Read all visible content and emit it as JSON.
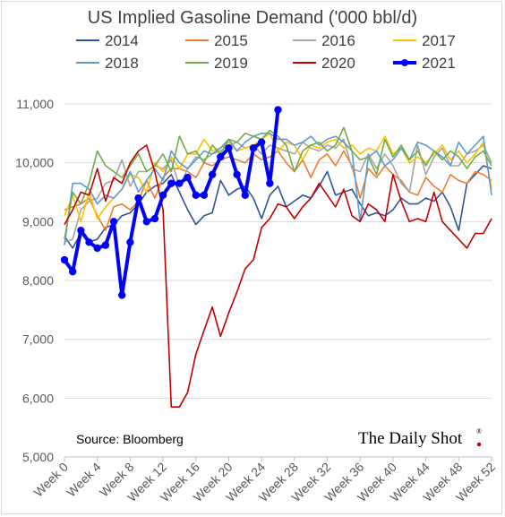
{
  "chart_data": {
    "type": "line",
    "title": "US Implied Gasoline Demand ('000 bbl/d)",
    "source": "Source: Bloomberg",
    "brand": "The Daily Shot",
    "brand_mark": "®",
    "xlabel": "",
    "ylabel": "",
    "xlim": [
      0,
      52
    ],
    "ylim": [
      5000,
      11000
    ],
    "y_ticks": [
      5000,
      6000,
      7000,
      8000,
      9000,
      10000,
      11000
    ],
    "y_tick_labels": [
      "5,000",
      "6,000",
      "7,000",
      "8,000",
      "9,000",
      "10,000",
      "11,000"
    ],
    "x_ticks": [
      0,
      4,
      8,
      12,
      16,
      20,
      24,
      28,
      32,
      36,
      40,
      44,
      48,
      52
    ],
    "x_tick_labels": [
      "Week 0",
      "Week 4",
      "Week 8",
      "Week 12",
      "Week 16",
      "Week 20",
      "Week 24",
      "Week 28",
      "Week 32",
      "Week 36",
      "Week 40",
      "Week 44",
      "Week 48",
      "Week 52"
    ],
    "grid": "horizontal",
    "legend_position": "top",
    "series": [
      {
        "name": "2014",
        "color": "#2e5597",
        "x": [
          0,
          1,
          2,
          3,
          4,
          5,
          6,
          7,
          8,
          9,
          10,
          11,
          12,
          13,
          14,
          15,
          16,
          17,
          18,
          19,
          20,
          21,
          22,
          23,
          24,
          25,
          26,
          27,
          28,
          29,
          30,
          31,
          32,
          33,
          34,
          35,
          36,
          37,
          38,
          39,
          40,
          41,
          42,
          43,
          44,
          45,
          46,
          47,
          48,
          49,
          50,
          51,
          52
        ],
        "y": [
          8750,
          8550,
          8800,
          8650,
          8700,
          8900,
          8950,
          9100,
          9150,
          9300,
          9500,
          9600,
          9650,
          9800,
          9500,
          9200,
          8950,
          9100,
          9150,
          9700,
          9450,
          9550,
          9600,
          9400,
          9050,
          9450,
          9600,
          9250,
          9350,
          9450,
          9400,
          9600,
          9850,
          9450,
          9500,
          9550,
          9300,
          9100,
          9150,
          9100,
          9200,
          9400,
          9300,
          9300,
          9400,
          9350,
          9500,
          9250,
          8850,
          9650,
          9800,
          9950,
          9900
        ]
      },
      {
        "name": "2015",
        "color": "#ed7d31",
        "x": [
          0,
          1,
          2,
          3,
          4,
          5,
          6,
          7,
          8,
          9,
          10,
          11,
          12,
          13,
          14,
          15,
          16,
          17,
          18,
          19,
          20,
          21,
          22,
          23,
          24,
          25,
          26,
          27,
          28,
          29,
          30,
          31,
          32,
          33,
          34,
          35,
          36,
          37,
          38,
          39,
          40,
          41,
          42,
          43,
          44,
          45,
          46,
          47,
          48,
          49,
          50,
          51,
          52
        ],
        "y": [
          9200,
          9250,
          9300,
          9400,
          9100,
          8850,
          9250,
          9300,
          9200,
          9350,
          9700,
          9400,
          9750,
          9900,
          9900,
          9850,
          9750,
          10000,
          9950,
          10050,
          10100,
          10050,
          10000,
          10150,
          10050,
          10100,
          10200,
          10000,
          9850,
          10050,
          9750,
          10050,
          10150,
          9950,
          10200,
          9950,
          9400,
          9900,
          9750,
          9950,
          9800,
          9700,
          9500,
          9450,
          9750,
          9600,
          9500,
          9800,
          9700,
          9650,
          9850,
          9800,
          9700
        ]
      },
      {
        "name": "2016",
        "color": "#a5a5a5",
        "x": [
          0,
          1,
          2,
          3,
          4,
          5,
          6,
          7,
          8,
          9,
          10,
          11,
          12,
          13,
          14,
          15,
          16,
          17,
          18,
          19,
          20,
          21,
          22,
          23,
          24,
          25,
          26,
          27,
          28,
          29,
          30,
          31,
          32,
          33,
          34,
          35,
          36,
          37,
          38,
          39,
          40,
          41,
          42,
          43,
          44,
          45,
          46,
          47,
          48,
          49,
          50,
          51,
          52
        ],
        "y": [
          8650,
          8700,
          9200,
          9350,
          9400,
          9650,
          9700,
          10050,
          9600,
          9850,
          9850,
          9950,
          9900,
          10050,
          9600,
          9900,
          10100,
          10050,
          10150,
          10200,
          10300,
          10350,
          10250,
          10300,
          10150,
          10300,
          10250,
          10200,
          10150,
          10350,
          10250,
          10200,
          10300,
          10250,
          10400,
          9900,
          9850,
          10150,
          9900,
          10150,
          9950,
          9650,
          9500,
          10300,
          9800,
          10100,
          10250,
          9950,
          9950,
          10150,
          10200,
          10300,
          10000
        ]
      },
      {
        "name": "2017",
        "color": "#ffc000",
        "x": [
          0,
          1,
          2,
          3,
          4,
          5,
          6,
          7,
          8,
          9,
          10,
          11,
          12,
          13,
          14,
          15,
          16,
          17,
          18,
          19,
          20,
          21,
          22,
          23,
          24,
          25,
          26,
          27,
          28,
          29,
          30,
          31,
          32,
          33,
          34,
          35,
          36,
          37,
          38,
          39,
          40,
          41,
          42,
          43,
          44,
          45,
          46,
          47,
          48,
          49,
          50,
          51,
          52
        ],
        "y": [
          9100,
          9450,
          9000,
          9500,
          9050,
          9250,
          9400,
          9550,
          9800,
          9750,
          9500,
          10000,
          9850,
          10100,
          9900,
          10150,
          10150,
          10400,
          10200,
          10250,
          10350,
          10200,
          10250,
          10300,
          10400,
          10500,
          10200,
          10350,
          10300,
          10050,
          10300,
          10250,
          10350,
          10400,
          10250,
          10300,
          10150,
          10250,
          10200,
          10450,
          10150,
          10250,
          10000,
          10100,
          10000,
          10150,
          10300,
          10050,
          10200,
          10000,
          10150,
          10350,
          9550
        ]
      },
      {
        "name": "2018",
        "color": "#5b9bd5",
        "x": [
          0,
          1,
          2,
          3,
          4,
          5,
          6,
          7,
          8,
          9,
          10,
          11,
          12,
          13,
          14,
          15,
          16,
          17,
          18,
          19,
          20,
          21,
          22,
          23,
          24,
          25,
          26,
          27,
          28,
          29,
          30,
          31,
          32,
          33,
          34,
          35,
          36,
          37,
          38,
          39,
          40,
          41,
          42,
          43,
          44,
          45,
          46,
          47,
          48,
          49,
          50,
          51,
          52
        ],
        "y": [
          8600,
          9650,
          9650,
          9550,
          9300,
          9450,
          9400,
          9550,
          9850,
          9500,
          9700,
          9900,
          9700,
          10200,
          10000,
          9900,
          10050,
          10200,
          10150,
          10250,
          10400,
          10200,
          10350,
          10450,
          10500,
          10500,
          10400,
          10400,
          10300,
          10350,
          10450,
          10300,
          10400,
          10450,
          10350,
          10200,
          9000,
          10100,
          10200,
          9950,
          10050,
          10250,
          10050,
          10350,
          10300,
          10200,
          10100,
          9950,
          10350,
          10150,
          10300,
          10450,
          9450
        ]
      },
      {
        "name": "2019",
        "color": "#70ad47",
        "x": [
          0,
          1,
          2,
          3,
          4,
          5,
          6,
          7,
          8,
          9,
          10,
          11,
          12,
          13,
          14,
          15,
          16,
          17,
          18,
          19,
          20,
          21,
          22,
          23,
          24,
          25,
          26,
          27,
          28,
          29,
          30,
          31,
          32,
          33,
          34,
          35,
          36,
          37,
          38,
          39,
          40,
          41,
          42,
          43,
          44,
          45,
          46,
          47,
          48,
          49,
          50,
          51,
          52
        ],
        "y": [
          8700,
          9500,
          9300,
          9650,
          10200,
          9950,
          9850,
          9750,
          9950,
          10150,
          9850,
          9950,
          10150,
          9850,
          10450,
          10150,
          10200,
          10000,
          10300,
          10150,
          10400,
          10350,
          10500,
          10450,
          10400,
          10550,
          10450,
          10300,
          9850,
          10200,
          10300,
          10350,
          10200,
          10300,
          10600,
          10200,
          10050,
          10100,
          9800,
          10400,
          10100,
          10300,
          10050,
          10200,
          9950,
          10200,
          10050,
          10200,
          10100,
          9900,
          10100,
          10200,
          9950
        ]
      },
      {
        "name": "2020",
        "color": "#c00000",
        "x": [
          0,
          1,
          2,
          3,
          4,
          5,
          6,
          7,
          8,
          9,
          10,
          11,
          12,
          13,
          14,
          15,
          16,
          17,
          18,
          19,
          20,
          21,
          22,
          23,
          24,
          25,
          26,
          27,
          28,
          29,
          30,
          31,
          32,
          33,
          34,
          35,
          36,
          37,
          38,
          39,
          40,
          41,
          42,
          43,
          44,
          45,
          46,
          47,
          48,
          49,
          50,
          51,
          52
        ],
        "y": [
          8950,
          9200,
          9500,
          9450,
          9900,
          9350,
          9750,
          9650,
          10000,
          10200,
          10300,
          9850,
          9200,
          5850,
          5850,
          6100,
          6750,
          7150,
          7550,
          7050,
          7450,
          7800,
          8200,
          8350,
          8900,
          9050,
          9300,
          9250,
          9050,
          9250,
          9400,
          9650,
          9450,
          9250,
          9550,
          9100,
          9000,
          9300,
          9200,
          9000,
          9800,
          9350,
          9000,
          9050,
          9000,
          9500,
          9000,
          8850,
          8700,
          8550,
          8800,
          8800,
          9050
        ]
      },
      {
        "name": "2021",
        "color": "#0000ff",
        "x": [
          0,
          1,
          2,
          3,
          4,
          5,
          6,
          7,
          8,
          9,
          10,
          11,
          12,
          13,
          14,
          15,
          16,
          17,
          18,
          19,
          20,
          21,
          22,
          23,
          24,
          25,
          26
        ],
        "y": [
          8350,
          8150,
          8850,
          8650,
          8550,
          8600,
          9000,
          7750,
          8650,
          9400,
          9000,
          9050,
          9450,
          9650,
          9650,
          9750,
          9450,
          9450,
          9800,
          10100,
          10250,
          9800,
          9450,
          10250,
          10350,
          9650,
          10900
        ]
      }
    ]
  }
}
